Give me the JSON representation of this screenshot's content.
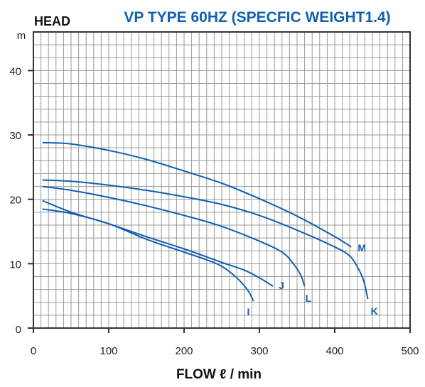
{
  "chart_data": {
    "type": "line",
    "title": "VP TYPE 60HZ (SPECFIC WEIGHT1.4)",
    "ylabel": "HEAD",
    "yunit": "m",
    "xlabel": "FLOW ℓ / min",
    "xlim": [
      0,
      500
    ],
    "ylim": [
      0,
      46
    ],
    "xticks": [
      "0",
      "100",
      "200",
      "300",
      "400",
      "500"
    ],
    "yticks": [
      "0",
      "10",
      "20",
      "30",
      "40"
    ],
    "grid": true,
    "colors": {
      "curve": "#1060b0",
      "title": "#1060b0",
      "grid": "#9a9a9a",
      "frame": "#333333",
      "text": "#222222"
    },
    "series": [
      {
        "name": "M",
        "x": [
          12,
          50,
          100,
          150,
          200,
          250,
          300,
          350,
          400,
          422
        ],
        "y": [
          28.8,
          28.6,
          27.6,
          26.2,
          24.4,
          22.5,
          20.1,
          17.4,
          14.2,
          12.6
        ]
      },
      {
        "name": "K",
        "x": [
          12,
          50,
          100,
          150,
          200,
          250,
          300,
          350,
          400,
          420,
          430,
          438,
          444
        ],
        "y": [
          23.0,
          22.8,
          22.2,
          21.4,
          20.4,
          19.2,
          17.5,
          15.2,
          12.6,
          11.2,
          9.5,
          7.5,
          4.5
        ]
      },
      {
        "name": "L",
        "x": [
          12,
          50,
          100,
          150,
          200,
          250,
          300,
          330,
          345,
          355,
          360
        ],
        "y": [
          22.0,
          21.4,
          20.3,
          19.0,
          17.5,
          15.8,
          13.5,
          11.8,
          10.0,
          8.2,
          6.5
        ]
      },
      {
        "name": "J",
        "x": [
          12,
          50,
          100,
          150,
          200,
          250,
          280,
          300,
          318
        ],
        "y": [
          19.8,
          18.0,
          16.2,
          14.2,
          12.3,
          10.2,
          9.0,
          7.8,
          6.5
        ]
      },
      {
        "name": "I",
        "x": [
          12,
          50,
          100,
          150,
          200,
          230,
          250,
          270,
          285,
          292
        ],
        "y": [
          18.5,
          17.8,
          16.2,
          13.8,
          11.8,
          10.6,
          9.6,
          7.8,
          5.8,
          4.2
        ]
      }
    ],
    "curve_labels": [
      "M",
      "K",
      "L",
      "J",
      "I"
    ]
  }
}
